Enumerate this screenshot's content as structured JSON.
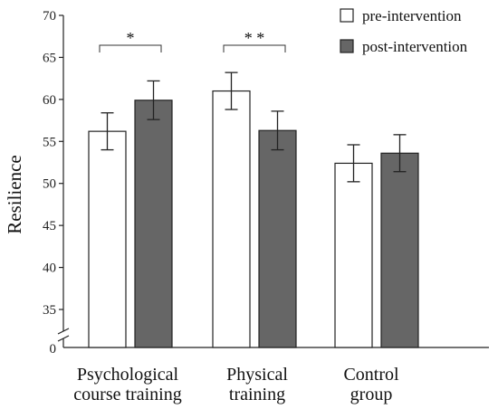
{
  "chart_data": {
    "type": "bar",
    "ylabel": "Resilience",
    "ylim": [
      35,
      70
    ],
    "yticks": [
      35,
      40,
      45,
      50,
      55,
      60,
      65,
      70
    ],
    "ybase_label": "0",
    "axis_break": true,
    "categories": [
      [
        "Psychological",
        "course training"
      ],
      [
        "Physical",
        "training"
      ],
      [
        "Control",
        "group"
      ]
    ],
    "series": [
      {
        "name": "pre-intervention",
        "values": [
          56.2,
          61.0,
          52.4
        ],
        "errors": [
          2.2,
          2.2,
          2.2
        ],
        "color": "#ffffff"
      },
      {
        "name": "post-intervention",
        "values": [
          59.9,
          56.3,
          53.6
        ],
        "errors": [
          2.3,
          2.3,
          2.2
        ],
        "color": "#666666"
      }
    ],
    "significance": [
      {
        "category": 0,
        "label": "*"
      },
      {
        "category": 1,
        "label": "* *"
      }
    ],
    "legend_position": "top-right",
    "grid": false
  }
}
